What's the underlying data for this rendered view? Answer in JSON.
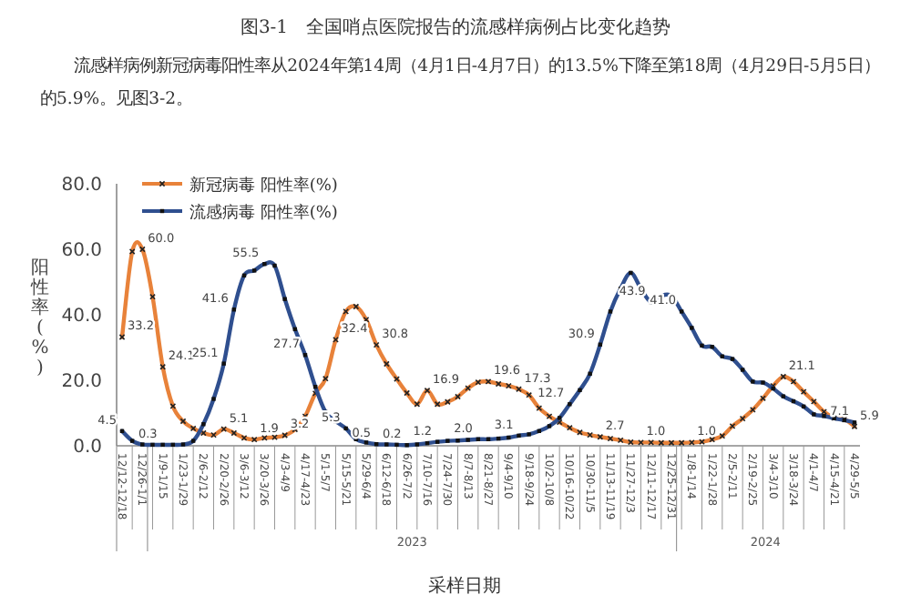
{
  "chart_data": {
    "type": "line",
    "annotations": [
      "图3-1　全国哨点医院报告的流感样病例占比变化趋势",
      "流感样病例新冠病毒阳性率从2024年第14周（4月1日-4月7日）的13.5%下降至第18周（4月29日-5月5日）的5.9%。见图3-2。",
      "2023",
      "2024"
    ],
    "xlabel": "采样日期",
    "ylabel": "阳性率(%)",
    "categories": [
      "12/12-12/18",
      null,
      "12/26-1/1",
      null,
      "1/9-1/15",
      null,
      "1/23-1/29",
      null,
      "2/6-2/12",
      null,
      "2/20-2/26",
      null,
      "3/6-3/12",
      null,
      "3/20-3/26",
      null,
      "4/3-4/9",
      null,
      "4/17-4/23",
      null,
      "5/1-5/7",
      null,
      "5/15-5/21",
      null,
      "5/29-6/4",
      null,
      "6/12-6/18",
      null,
      "6/26-7/2",
      null,
      "7/10-7/16",
      null,
      "7/24-7/30",
      null,
      "8/7-8/13",
      null,
      "8/21-8/27",
      null,
      "9/4-9/10",
      null,
      "9/18-9/24",
      null,
      "10/2-10/8",
      null,
      "10/16-10/22",
      null,
      "10/30-11/5",
      null,
      "11/13-11/19",
      null,
      "11/27-12/3",
      null,
      "12/11-12/17",
      null,
      "12/25-12/31",
      null,
      "1/8-1/14",
      null,
      "1/22-1/28",
      null,
      "2/5-2/11",
      null,
      "2/19-2/25",
      null,
      "3/4-3/10",
      null,
      "3/18-3/24",
      null,
      "4/1-4/7",
      null,
      "4/15-4/21",
      null,
      "4/29-5/5"
    ],
    "series": [
      {
        "name": "新冠病毒 阳性率(%)",
        "color": "#e8823a",
        "marker": "cross",
        "values": [
          33.2,
          59.3,
          60.0,
          45.5,
          24.1,
          12.1,
          7.5,
          5.3,
          3.9,
          3.3,
          5.1,
          3.9,
          2.4,
          1.9,
          2.4,
          2.6,
          3.2,
          5.0,
          9.0,
          16.0,
          20.5,
          32.4,
          41.0,
          42.5,
          38.5,
          30.8,
          25.0,
          20.4,
          16.1,
          12.7,
          16.9,
          12.7,
          13.4,
          15.0,
          17.6,
          19.4,
          19.6,
          18.9,
          18.3,
          17.3,
          15.5,
          11.5,
          9.0,
          7.2,
          5.5,
          4.1,
          3.3,
          2.7,
          2.2,
          1.7,
          1.1,
          1.0,
          1.0,
          0.9,
          0.9,
          0.9,
          1.0,
          1.2,
          1.9,
          3.0,
          6.0,
          8.3,
          11.0,
          14.5,
          18.3,
          21.1,
          19.6,
          16.5,
          13.5,
          10.4,
          8.5,
          8.1,
          5.9
        ],
        "value_labels": [
          "33.2",
          null,
          "60.0",
          null,
          "24.1",
          null,
          null,
          null,
          null,
          null,
          "5.1",
          null,
          null,
          "1.9",
          null,
          null,
          "3.2",
          null,
          null,
          null,
          null,
          "32.4",
          null,
          null,
          null,
          "30.8",
          null,
          null,
          null,
          null,
          "16.9",
          null,
          null,
          null,
          null,
          null,
          "19.6",
          null,
          null,
          "17.3",
          null,
          null,
          null,
          null,
          null,
          null,
          null,
          "2.7",
          null,
          null,
          null,
          "1.0",
          null,
          null,
          null,
          null,
          "1.0",
          null,
          null,
          null,
          null,
          null,
          null,
          null,
          null,
          "21.1",
          null,
          null,
          null,
          null,
          null,
          null,
          "5.9"
        ]
      },
      {
        "name": "流感病毒 阳性率(%)",
        "color": "#2f4f8f",
        "marker": "square",
        "values": [
          4.5,
          1.5,
          0.4,
          0.3,
          0.3,
          0.3,
          0.4,
          1.5,
          6.6,
          14.3,
          25.1,
          41.6,
          52.0,
          53.5,
          55.5,
          55.0,
          44.8,
          35.6,
          27.7,
          18.0,
          10.3,
          7.5,
          5.3,
          2.0,
          1.0,
          0.5,
          0.4,
          0.3,
          0.2,
          0.4,
          0.8,
          1.2,
          1.5,
          1.6,
          1.8,
          2.0,
          2.0,
          2.2,
          2.5,
          3.1,
          3.5,
          4.5,
          6.0,
          8.5,
          12.7,
          17.0,
          22.0,
          30.9,
          41.0,
          48.0,
          52.8,
          48.0,
          43.9,
          45.8,
          45.8,
          41.0,
          36.0,
          30.6,
          30.2,
          27.3,
          26.5,
          23.2,
          19.6,
          19.3,
          17.5,
          15.1,
          13.6,
          12.0,
          9.6,
          9.1,
          8.4,
          7.8,
          7.1
        ],
        "value_labels": [
          "4.5",
          null,
          null,
          null,
          "0.3",
          null,
          null,
          null,
          null,
          null,
          "25.1",
          "41.6",
          null,
          null,
          "55.5",
          null,
          null,
          null,
          "27.7",
          null,
          null,
          null,
          "5.3",
          null,
          null,
          "0.5",
          null,
          null,
          "0.2",
          null,
          null,
          "1.2",
          null,
          null,
          null,
          "2.0",
          null,
          null,
          null,
          "3.1",
          null,
          null,
          null,
          null,
          "12.7",
          null,
          null,
          "30.9",
          null,
          null,
          null,
          null,
          "43.9",
          null,
          null,
          "41.0",
          null,
          null,
          null,
          null,
          null,
          null,
          null,
          null,
          null,
          null,
          null,
          null,
          null,
          null,
          null,
          null,
          "7.1"
        ]
      }
    ],
    "ylim": [
      0,
      80
    ],
    "yticks": [
      {
        "value": 0,
        "label": "0.0"
      },
      {
        "value": 20,
        "label": "20.0"
      },
      {
        "value": 40,
        "label": "40.0"
      },
      {
        "value": 60,
        "label": "60.0"
      },
      {
        "value": 80,
        "label": "80.0"
      }
    ],
    "legend": "top left",
    "grid": false
  }
}
